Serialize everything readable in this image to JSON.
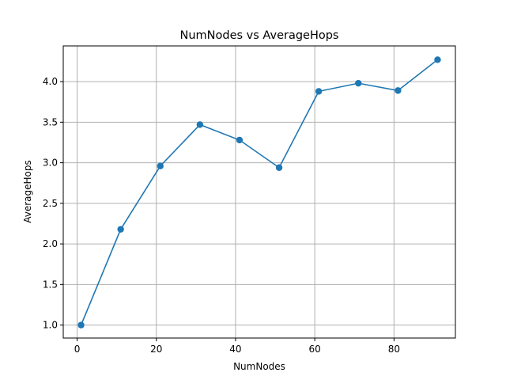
{
  "chart_data": {
    "type": "line",
    "title": "NumNodes vs AverageHops",
    "xlabel": "NumNodes",
    "ylabel": "AverageHops",
    "xlim": [
      -3.5,
      95.5
    ],
    "ylim": [
      0.84,
      4.44
    ],
    "xticks": [
      0,
      20,
      40,
      60,
      80
    ],
    "yticks": [
      1.0,
      1.5,
      2.0,
      2.5,
      3.0,
      3.5,
      4.0
    ],
    "grid": true,
    "series": [
      {
        "x": [
          1,
          11,
          21,
          31,
          41,
          51,
          61,
          71,
          81,
          91
        ],
        "y": [
          1.0,
          2.18,
          2.96,
          3.47,
          3.28,
          2.94,
          3.88,
          3.98,
          3.89,
          4.27
        ],
        "color": "#1f77b4",
        "marker": "circle"
      }
    ]
  }
}
